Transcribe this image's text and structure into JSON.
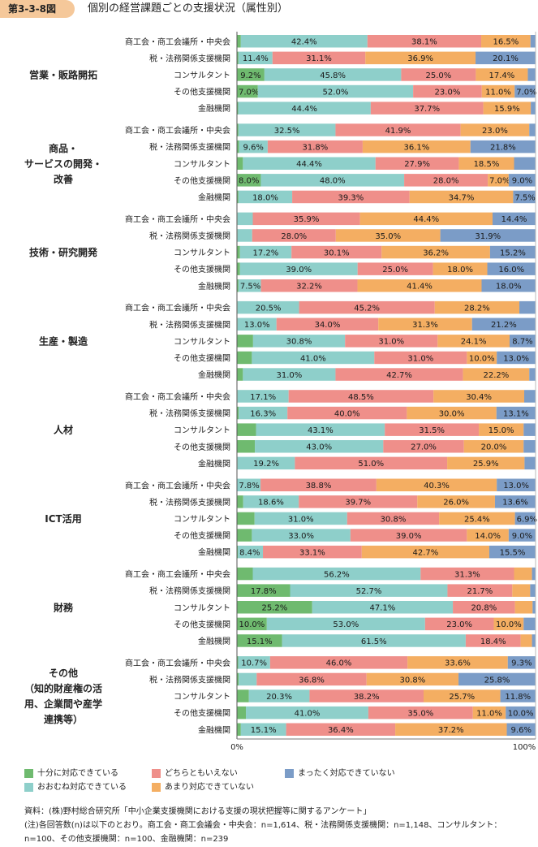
{
  "figure": {
    "number": "第3-3-8図",
    "title": "個別の経営課題ごとの支援状況（属性別）"
  },
  "colors": {
    "fully": "#6fba6f",
    "mostly": "#8ecfca",
    "neither": "#ef8f8a",
    "not_much": "#f4ae62",
    "not_at_all": "#7b9cc7"
  },
  "legend": [
    {
      "key": "fully",
      "label": "十分に対応できている"
    },
    {
      "key": "neither",
      "label": "どちらともいえない"
    },
    {
      "key": "not_at_all",
      "label": "まったく対応できていない"
    },
    {
      "key": "mostly",
      "label": "おおむね対応できている"
    },
    {
      "key": "not_much",
      "label": "あまり対応できていない"
    }
  ],
  "chart_data": {
    "type": "bar",
    "orientation": "horizontal",
    "stacked": "percent",
    "xlim": [
      0,
      100
    ],
    "tick_labels": [
      "0%",
      "100%"
    ],
    "categories": [
      "商工会・商工会議所・中央会",
      "税・法務関係支援機関",
      "コンサルタント",
      "その他支援機関",
      "金融機関"
    ],
    "series": [
      {
        "key": "fully",
        "name": "十分に対応できている"
      },
      {
        "key": "mostly",
        "name": "おおむね対応できている"
      },
      {
        "key": "neither",
        "name": "どちらともいえない"
      },
      {
        "key": "not_much",
        "name": "あまり対応できていない"
      },
      {
        "key": "not_at_all",
        "name": "まったく対応できていない"
      }
    ],
    "groups": [
      {
        "label": [
          "営業・販路開拓"
        ],
        "rows": [
          {
            "values": [
              1.3,
              42.4,
              38.1,
              16.5,
              1.7
            ],
            "labels": [
              "",
              "42.4%",
              "38.1%",
              "16.5%",
              ""
            ]
          },
          {
            "values": [
              0.5,
              11.4,
              31.1,
              36.9,
              20.1
            ],
            "labels": [
              "",
              "11.4%",
              "31.1%",
              "36.9%",
              "20.1%"
            ]
          },
          {
            "values": [
              9.2,
              45.8,
              25.0,
              17.4,
              2.6
            ],
            "labels": [
              "9.2%",
              "45.8%",
              "25.0%",
              "17.4%",
              ""
            ]
          },
          {
            "values": [
              7.0,
              52.0,
              23.0,
              11.0,
              7.0
            ],
            "labels": [
              "7.0%",
              "52.0%",
              "23.0%",
              "11.0%",
              "7.0%"
            ]
          },
          {
            "values": [
              0.4,
              44.4,
              37.7,
              15.9,
              1.6
            ],
            "labels": [
              "",
              "44.4%",
              "37.7%",
              "15.9%",
              ""
            ]
          }
        ]
      },
      {
        "label": [
          "商品・",
          "サービスの開発・",
          "改善"
        ],
        "rows": [
          {
            "values": [
              0.5,
              32.5,
              41.9,
              23.0,
              2.1
            ],
            "labels": [
              "",
              "32.5%",
              "41.9%",
              "23.0%",
              ""
            ]
          },
          {
            "values": [
              0.7,
              9.6,
              31.8,
              36.1,
              21.8
            ],
            "labels": [
              "",
              "9.6%",
              "31.8%",
              "36.1%",
              "21.8%"
            ]
          },
          {
            "values": [
              2.0,
              44.4,
              27.9,
              18.5,
              7.2
            ],
            "labels": [
              "",
              "44.4%",
              "27.9%",
              "18.5%",
              ""
            ]
          },
          {
            "values": [
              8.0,
              48.0,
              28.0,
              7.0,
              9.0
            ],
            "labels": [
              "8.0%",
              "48.0%",
              "28.0%",
              "7.0%",
              "9.0%"
            ]
          },
          {
            "values": [
              0.5,
              18.0,
              39.3,
              34.7,
              7.5
            ],
            "labels": [
              "",
              "18.0%",
              "39.3%",
              "34.7%",
              "7.5%"
            ]
          }
        ]
      },
      {
        "label": [
          "技術・研究開発"
        ],
        "rows": [
          {
            "values": [
              0.2,
              5.1,
              35.9,
              44.4,
              14.4
            ],
            "labels": [
              "",
              "",
              "35.9%",
              "44.4%",
              "14.4%"
            ]
          },
          {
            "values": [
              0.2,
              4.9,
              28.0,
              35.0,
              31.9
            ],
            "labels": [
              "",
              "",
              "28.0%",
              "35.0%",
              "31.9%"
            ]
          },
          {
            "values": [
              1.0,
              17.2,
              30.1,
              36.2,
              15.2
            ],
            "labels": [
              "",
              "17.2%",
              "30.1%",
              "36.2%",
              "15.2%"
            ]
          },
          {
            "values": [
              1.0,
              39.0,
              25.0,
              18.0,
              16.0
            ],
            "labels": [
              "",
              "39.0%",
              "25.0%",
              "18.0%",
              "16.0%"
            ]
          },
          {
            "values": [
              0.5,
              7.5,
              32.2,
              41.4,
              18.0
            ],
            "labels": [
              "",
              "7.5%",
              "32.2%",
              "41.4%",
              "18.0%"
            ]
          }
        ]
      },
      {
        "label": [
          "生産・製造"
        ],
        "rows": [
          {
            "values": [
              0.2,
              20.5,
              45.2,
              28.2,
              5.4
            ],
            "labels": [
              "",
              "20.5%",
              "45.2%",
              "28.2%",
              ""
            ]
          },
          {
            "values": [
              0.2,
              13.0,
              34.0,
              31.3,
              21.2
            ],
            "labels": [
              "",
              "13.0%",
              "34.0%",
              "31.3%",
              "21.2%"
            ]
          },
          {
            "values": [
              5.4,
              30.8,
              31.0,
              24.1,
              8.7
            ],
            "labels": [
              "",
              "30.8%",
              "31.0%",
              "24.1%",
              "8.7%"
            ]
          },
          {
            "values": [
              5.0,
              41.0,
              31.0,
              10.0,
              13.0
            ],
            "labels": [
              "",
              "41.0%",
              "31.0%",
              "10.0%",
              "13.0%"
            ]
          },
          {
            "values": [
              2.0,
              31.0,
              42.7,
              22.2,
              2.1
            ],
            "labels": [
              "",
              "31.0%",
              "42.7%",
              "22.2%",
              ""
            ]
          }
        ]
      },
      {
        "label": [
          "人材"
        ],
        "rows": [
          {
            "values": [
              0.2,
              17.1,
              48.5,
              30.4,
              3.8
            ],
            "labels": [
              "",
              "17.1%",
              "48.5%",
              "30.4%",
              ""
            ]
          },
          {
            "values": [
              0.6,
              16.3,
              40.0,
              30.0,
              13.1
            ],
            "labels": [
              "",
              "16.3%",
              "40.0%",
              "30.0%",
              "13.1%"
            ]
          },
          {
            "values": [
              6.4,
              43.1,
              31.5,
              15.0,
              4.0
            ],
            "labels": [
              "",
              "43.1%",
              "31.5%",
              "15.0%",
              ""
            ]
          },
          {
            "values": [
              6.0,
              43.0,
              27.0,
              20.0,
              4.0
            ],
            "labels": [
              "",
              "43.0%",
              "27.0%",
              "20.0%",
              ""
            ]
          },
          {
            "values": [
              0.2,
              19.2,
              51.0,
              25.9,
              3.7
            ],
            "labels": [
              "",
              "19.2%",
              "51.0%",
              "25.9%",
              ""
            ]
          }
        ]
      },
      {
        "label": [
          "ICT活用"
        ],
        "rows": [
          {
            "values": [
              0.1,
              7.8,
              38.8,
              40.3,
              13.0
            ],
            "labels": [
              "",
              "7.8%",
              "38.8%",
              "40.3%",
              "13.0%"
            ]
          },
          {
            "values": [
              2.1,
              18.6,
              39.7,
              26.0,
              13.6
            ],
            "labels": [
              "",
              "18.6%",
              "39.7%",
              "26.0%",
              "13.6%"
            ]
          },
          {
            "values": [
              5.9,
              31.0,
              30.8,
              25.4,
              6.9
            ],
            "labels": [
              "",
              "31.0%",
              "30.8%",
              "25.4%",
              "6.9%"
            ]
          },
          {
            "values": [
              5.0,
              33.0,
              39.0,
              14.0,
              9.0
            ],
            "labels": [
              "",
              "33.0%",
              "39.0%",
              "14.0%",
              "9.0%"
            ]
          },
          {
            "values": [
              0.3,
              8.4,
              33.1,
              42.7,
              15.5
            ],
            "labels": [
              "",
              "8.4%",
              "33.1%",
              "42.7%",
              "15.5%"
            ]
          }
        ]
      },
      {
        "label": [
          "財務"
        ],
        "rows": [
          {
            "values": [
              5.3,
              56.2,
              31.3,
              6.0,
              1.2
            ],
            "labels": [
              "",
              "56.2%",
              "31.3%",
              "",
              ""
            ]
          },
          {
            "values": [
              17.8,
              52.7,
              21.7,
              6.0,
              1.8
            ],
            "labels": [
              "17.8%",
              "52.7%",
              "21.7%",
              "",
              ""
            ]
          },
          {
            "values": [
              25.2,
              47.1,
              20.8,
              5.9,
              1.0
            ],
            "labels": [
              "25.2%",
              "47.1%",
              "20.8%",
              "",
              ""
            ]
          },
          {
            "values": [
              10.0,
              53.0,
              23.0,
              10.0,
              4.0
            ],
            "labels": [
              "10.0%",
              "53.0%",
              "23.0%",
              "10.0%",
              ""
            ]
          },
          {
            "values": [
              15.1,
              61.5,
              18.4,
              3.8,
              1.2
            ],
            "labels": [
              "15.1%",
              "61.5%",
              "18.4%",
              "",
              ""
            ]
          }
        ]
      },
      {
        "label": [
          "その他",
          "（知的財産権の活",
          "用、企業間や産学",
          "連携等）"
        ],
        "rows": [
          {
            "values": [
              0.4,
              10.7,
              46.0,
              33.6,
              9.3
            ],
            "labels": [
              "",
              "10.7%",
              "46.0%",
              "33.6%",
              "9.3%"
            ]
          },
          {
            "values": [
              0.6,
              6.0,
              36.8,
              30.8,
              25.8
            ],
            "labels": [
              "",
              "",
              "36.8%",
              "30.8%",
              "25.8%"
            ]
          },
          {
            "values": [
              4.0,
              20.3,
              38.2,
              25.7,
              11.8
            ],
            "labels": [
              "",
              "20.3%",
              "38.2%",
              "25.7%",
              "11.8%"
            ]
          },
          {
            "values": [
              3.0,
              41.0,
              35.0,
              11.0,
              10.0
            ],
            "labels": [
              "",
              "41.0%",
              "35.0%",
              "11.0%",
              "10.0%"
            ]
          },
          {
            "values": [
              1.3,
              15.1,
              36.4,
              37.2,
              9.6
            ],
            "labels": [
              "",
              "15.1%",
              "36.4%",
              "37.2%",
              "9.6%"
            ]
          }
        ]
      }
    ]
  },
  "notes": [
    "資料：(株)野村総合研究所「中小企業支援機関における支援の現状把握等に関するアンケート」",
    "(注)各回答数(n)は以下のとおり。商工会・商工会議会・中央会：n=1,614、税・法務関係支援機関：n=1,148、コンサルタント：n=100、その他支援機関：n=100、金融機関：n=239"
  ]
}
